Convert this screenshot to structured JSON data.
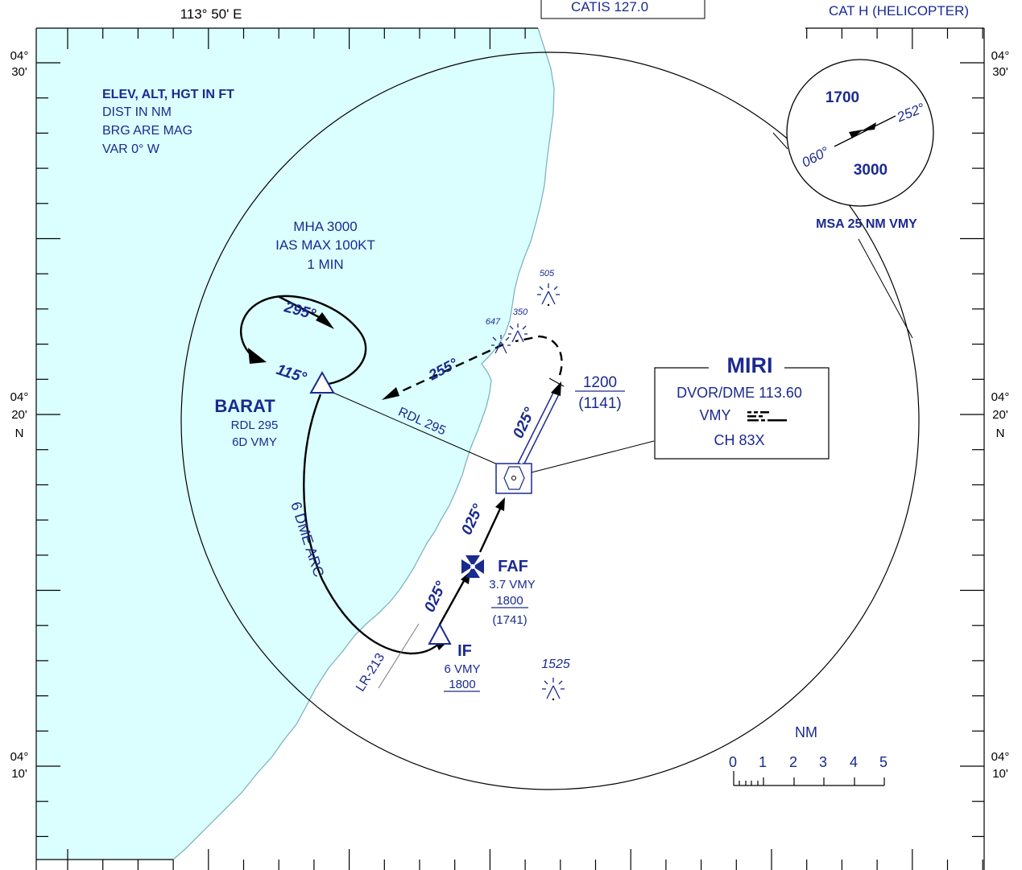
{
  "header": {
    "longitude_label": "113° 50' E",
    "catis_label": "CATIS  127.0",
    "category_label": "CAT H (HELICOPTER)"
  },
  "lat_labels": {
    "lat_30_deg": "04°",
    "lat_30_min": "30'",
    "lat_20_deg": "04°",
    "lat_20_min": "20'",
    "lat_20_hemi": "N",
    "lat_10_deg": "04°",
    "lat_10_min": "10'"
  },
  "notes": {
    "line1": "ELEV, ALT, HGT IN FT",
    "line2": "DIST IN NM",
    "line3": "BRG ARE MAG",
    "line4": "VAR 0° W"
  },
  "holding": {
    "mha": "MHA 3000",
    "ias": "IAS MAX 100KT",
    "time": "1 MIN",
    "outbound_brg": "295°",
    "inbound_brg": "115°"
  },
  "barat": {
    "name": "BARAT",
    "rdl": "RDL 295",
    "dist": "6D VMY",
    "radial_label": "RDL 295"
  },
  "arc_label": "6 DME ARC",
  "airway_label": "LR-213",
  "missed_approach": {
    "bearing": "255°",
    "course": "025°",
    "altitude": "1200",
    "height": "(1141)"
  },
  "final": {
    "course_to_faf": "025°",
    "course_from_faf": "025°"
  },
  "faf": {
    "name": "FAF",
    "dist": "3.7 VMY",
    "altitude": "1800",
    "height": "(1741)"
  },
  "if_fix": {
    "name": "IF",
    "dist": "6 VMY",
    "altitude": "1800"
  },
  "obstacles": {
    "obs_505": "505",
    "obs_350": "350",
    "obs_647": "647",
    "obs_1525": "1525"
  },
  "navaid": {
    "name": "MIRI",
    "freq": "DVOR/DME 113.60",
    "ident": "VMY",
    "channel": "CH 83X"
  },
  "msa": {
    "north_alt": "1700",
    "south_alt": "3000",
    "brg_ne": "252°",
    "brg_sw": "060°",
    "label": "MSA 25 NM VMY"
  },
  "scale": {
    "unit": "NM",
    "ticks": [
      "0",
      "1",
      "2",
      "3",
      "4",
      "5"
    ]
  },
  "colors": {
    "sea": "#dbffff",
    "coast": "#7fb4bf",
    "ink": "#1b2a8f",
    "line": "#000000"
  }
}
